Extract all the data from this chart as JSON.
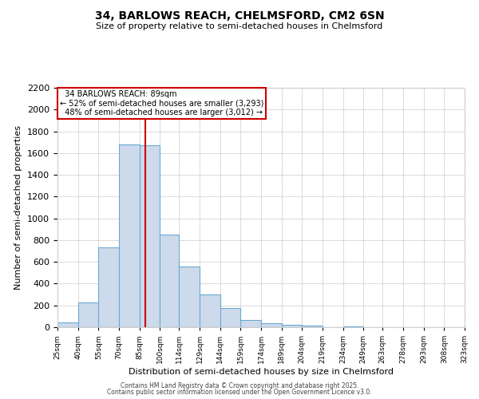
{
  "title_line1": "34, BARLOWS REACH, CHELMSFORD, CM2 6SN",
  "title_line2": "Size of property relative to semi-detached houses in Chelmsford",
  "xlabel": "Distribution of semi-detached houses by size in Chelmsford",
  "ylabel": "Number of semi-detached properties",
  "property_label": "34 BARLOWS REACH: 89sqm",
  "pct_smaller": 52,
  "pct_larger": 48,
  "count_smaller": 3293,
  "count_larger": 3012,
  "annotation_type": "semi-detached",
  "bar_edges": [
    25,
    40,
    55,
    70,
    85,
    100,
    114,
    129,
    144,
    159,
    174,
    189,
    204,
    219,
    234,
    249,
    263,
    278,
    293,
    308,
    323
  ],
  "bar_heights": [
    45,
    225,
    730,
    1680,
    1670,
    850,
    560,
    300,
    175,
    65,
    40,
    25,
    15,
    0,
    10,
    0,
    0,
    0,
    0,
    0,
    0
  ],
  "bar_color": "#cddaeb",
  "bar_edge_color": "#6aaad4",
  "vline_color": "#cc0000",
  "vline_x": 89,
  "ylim": [
    0,
    2200
  ],
  "yticks": [
    0,
    200,
    400,
    600,
    800,
    1000,
    1200,
    1400,
    1600,
    1800,
    2000,
    2200
  ],
  "grid_color": "#cccccc",
  "bg_color": "#ffffff",
  "box_color": "#cc0000",
  "footer_line1": "Contains HM Land Registry data © Crown copyright and database right 2025.",
  "footer_line2": "Contains public sector information licensed under the Open Government Licence v3.0."
}
